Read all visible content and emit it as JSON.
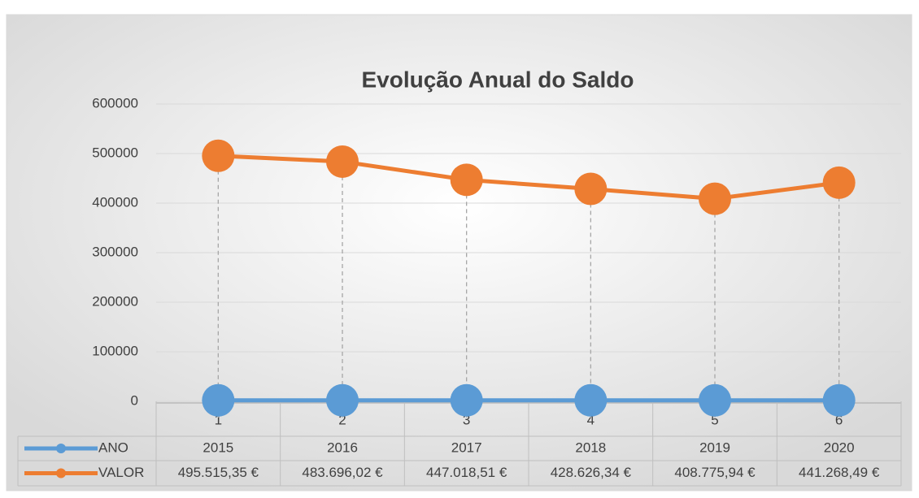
{
  "chart_data": {
    "type": "line",
    "title": "Evolução Anual do Saldo",
    "categories": [
      "1",
      "2",
      "3",
      "4",
      "5",
      "6"
    ],
    "series": [
      {
        "name": "ANO",
        "color": "#5b9bd5",
        "values": [
          2015,
          2016,
          2017,
          2018,
          2019,
          2020
        ]
      },
      {
        "name": "VALOR",
        "color": "#ed7d31",
        "values": [
          495515.35,
          483696.02,
          447018.51,
          428626.34,
          408775.94,
          441268.49
        ],
        "value_labels": [
          "495.515,35 €",
          "483.696,02 €",
          "447.018,51 €",
          "428.626,34 €",
          "408.775,94 €",
          "441.268,49 €"
        ]
      }
    ],
    "ylim": [
      0,
      600000
    ],
    "yticks": [
      0,
      100000,
      200000,
      300000,
      400000,
      500000,
      600000
    ],
    "grid": true,
    "data_table": true,
    "drop_lines": true
  }
}
